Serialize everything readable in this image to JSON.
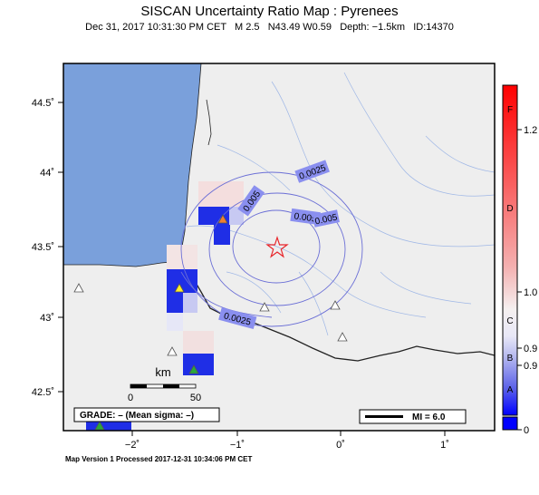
{
  "header": {
    "title": "SISCAN Uncertainty Ratio Map : Pyrenees",
    "subtitle": "Dec 31, 2017 10:31:30 PM CET   M 2.5   N43.49 W0.59   Depth: −1.5km   ID:14370"
  },
  "map": {
    "lat_ticks": [
      "44.5˚",
      "44˚",
      "43.5˚",
      "43˚",
      "42.5˚"
    ],
    "lon_ticks": [
      "−2˚",
      "−1˚",
      "0˚",
      "1˚"
    ],
    "contour_labels": [
      "0.0025",
      "0.005",
      "0.005",
      "0.005",
      "0.0025"
    ],
    "scalebar": {
      "unit": "km",
      "start": "0",
      "end": "50"
    },
    "grade_box": "GRADE: – (Mean sigma: –)",
    "mi_legend": "MI = 6.0",
    "colors": {
      "ocean": "#7aa0db",
      "land": "#eeeeee",
      "epicenter": "#e8262b",
      "contour": "#6b6fd6"
    }
  },
  "colorbar": {
    "grades": [
      "F",
      "D",
      "C",
      "B",
      "A"
    ],
    "values": [
      "1.2",
      "1.0",
      "0.9",
      "0.9",
      "0"
    ]
  },
  "footer": "Map Version 1 Processed 2017-12-31 10:34:06 PM CET"
}
